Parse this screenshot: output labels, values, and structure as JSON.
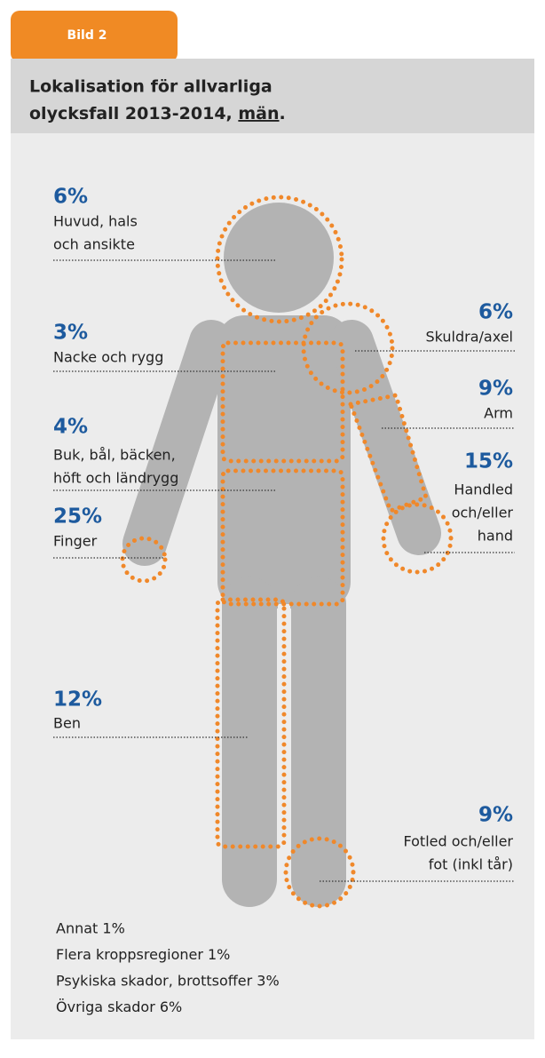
{
  "header": {
    "tab": "Bild 2",
    "title": {
      "lines": [
        "Lokalisation för allvarliga",
        "olycksfall 2013-2014, "
      ],
      "emphasis": "män",
      "end": "."
    }
  },
  "regions": [
    {
      "percent": "6%",
      "label": [
        "Huvud, hals",
        "och ansikte"
      ]
    },
    {
      "percent": "3%",
      "label": [
        "Nacke och rygg"
      ]
    },
    {
      "percent": "4%",
      "label": [
        "Buk, bål, bäcken,",
        "höft och ländrygg"
      ]
    },
    {
      "percent": "25%",
      "label": [
        "Finger"
      ]
    },
    {
      "percent": "12%",
      "label": [
        "Ben"
      ]
    },
    {
      "percent": "6%",
      "label": [
        "Skuldra/axel"
      ]
    },
    {
      "percent": "9%",
      "label": [
        "Arm"
      ]
    },
    {
      "percent": "15%",
      "label": [
        "Handled",
        "och/eller",
        "hand"
      ]
    },
    {
      "percent": "9%",
      "label": [
        "Fotled och/eller",
        "fot (inkl tår)"
      ]
    }
  ],
  "other": [
    "Annat 1%",
    "Flera kroppsregioner 1%",
    "Psykiska skador, brottsoffer 3%",
    "Övriga skador 6%"
  ]
}
